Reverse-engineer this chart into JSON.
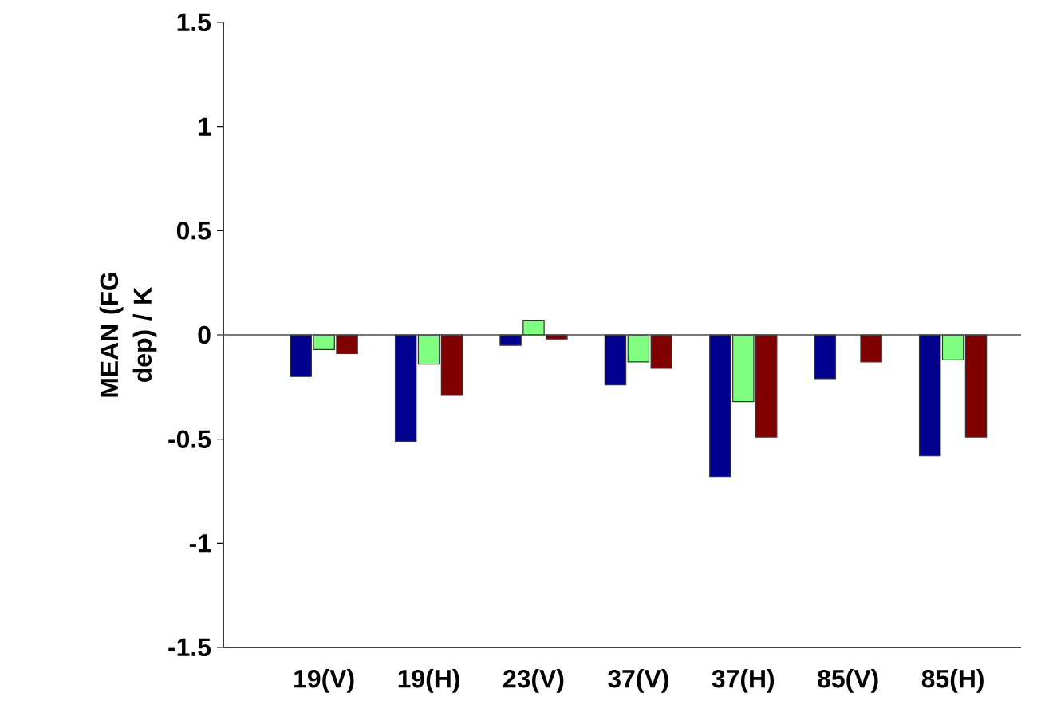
{
  "chart_data": {
    "type": "bar",
    "ylabel": "MEAN (FG dep) / K",
    "categories": [
      "19(V)",
      "19(H)",
      "23(V)",
      "37(V)",
      "37(H)",
      "85(V)",
      "85(H)"
    ],
    "series": [
      {
        "color": "#000090",
        "values": [
          -0.2,
          -0.51,
          -0.05,
          -0.24,
          -0.68,
          -0.21,
          -0.58
        ]
      },
      {
        "color": "#80ff80",
        "values": [
          -0.07,
          -0.14,
          0.07,
          -0.13,
          -0.32,
          null,
          -0.12
        ]
      },
      {
        "color": "#800000",
        "values": [
          -0.09,
          -0.29,
          -0.02,
          -0.16,
          -0.49,
          -0.13,
          -0.49
        ]
      }
    ],
    "ylim": [
      -1.5,
      1.5
    ],
    "yticks": [
      -1.5,
      -1,
      -0.5,
      0,
      0.5,
      1,
      1.5
    ]
  }
}
